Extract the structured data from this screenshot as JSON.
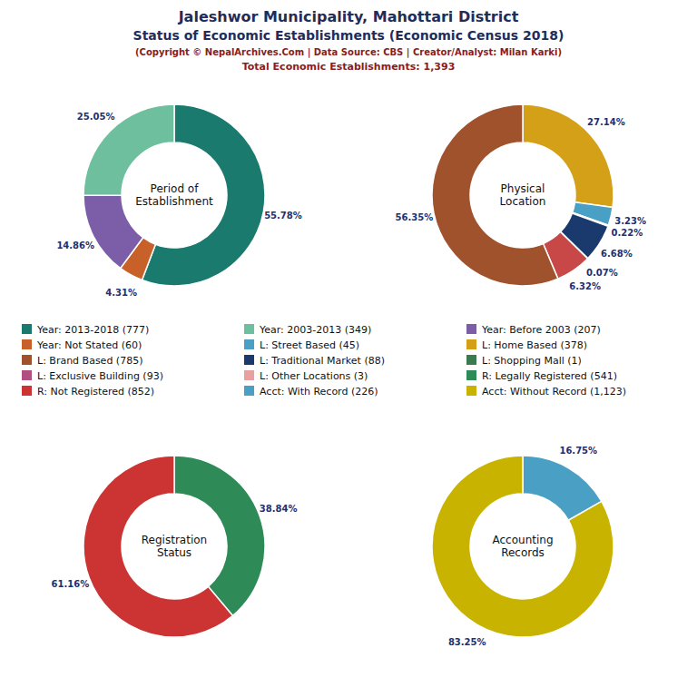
{
  "title": [
    "Jaleshwor Municipality, Mahottari District",
    "Status of Economic Establishments (Economic Census 2018)"
  ],
  "annotations": [
    "(Copyright © NepalArchives.Com | Data Source: CBS | Creator/Analyst: Milan Karki)",
    "Total Economic Establishments: 1,393"
  ],
  "legend_entries": [
    {
      "name": "Year: 2013-2018 (777)",
      "color": "#1a7a6e"
    },
    {
      "name": "Year: 2003-2013 (349)",
      "color": "#6dbf9e"
    },
    {
      "name": "Year: Before 2003 (207)",
      "color": "#7b5ea7"
    },
    {
      "name": "Year: Not Stated (60)",
      "color": "#c8602a"
    },
    {
      "name": "L: Street Based (45)",
      "color": "#4a9fc4"
    },
    {
      "name": "L: Home Based (378)",
      "color": "#d4a017"
    },
    {
      "name": "L: Brand Based (785)",
      "color": "#a0522d"
    },
    {
      "name": "L: Traditional Market (88)",
      "color": "#1a3a6e"
    },
    {
      "name": "L: Shopping Mall (1)",
      "color": "#3a7a4e"
    },
    {
      "name": "L: Exclusive Building (93)",
      "color": "#b05080"
    },
    {
      "name": "L: Other Locations (3)",
      "color": "#e8a0a0"
    },
    {
      "name": "R: Legally Registered (541)",
      "color": "#2e8b57"
    },
    {
      "name": "R: Not Registered (852)",
      "color": "#cc3333"
    },
    {
      "name": "Acct: With Record (226)",
      "color": "#4a9fc4"
    },
    {
      "name": "Acct: Without Record (1,123)",
      "color": "#c8b400"
    }
  ],
  "chart_data": [
    {
      "type": "pie",
      "title": "Period of\nEstablishment",
      "values": [
        55.78,
        4.31,
        14.86,
        25.05
      ],
      "value_labels": [
        "55.78%",
        "4.31%",
        "14.86%",
        "25.05%"
      ],
      "colors": [
        "#1a7a6e",
        "#c8602a",
        "#7b5ea7",
        "#6dbf9e"
      ],
      "data_labels": true
    },
    {
      "type": "pie",
      "title": "Physical\nLocation",
      "values": [
        27.14,
        3.23,
        0.22,
        6.68,
        0.07,
        6.32,
        56.35
      ],
      "value_labels": [
        "27.14%",
        "3.23%",
        "0.22%",
        "6.68%",
        "0.07%",
        "6.32%",
        "56.35%"
      ],
      "colors": [
        "#d4a017",
        "#4a9fc4",
        "#b05080",
        "#1a3a6e",
        "#3a7a4e",
        "#c84848",
        "#a0522d"
      ],
      "data_labels": true
    },
    {
      "type": "pie",
      "title": "Registration\nStatus",
      "values": [
        38.84,
        61.16
      ],
      "value_labels": [
        "38.84%",
        "61.16%"
      ],
      "colors": [
        "#2e8b57",
        "#cc3333"
      ],
      "data_labels": true
    },
    {
      "type": "pie",
      "title": "Accounting\nRecords",
      "values": [
        16.75,
        83.25
      ],
      "value_labels": [
        "16.75%",
        "83.25%"
      ],
      "colors": [
        "#4a9fc4",
        "#c8b400"
      ],
      "data_labels": true
    }
  ]
}
